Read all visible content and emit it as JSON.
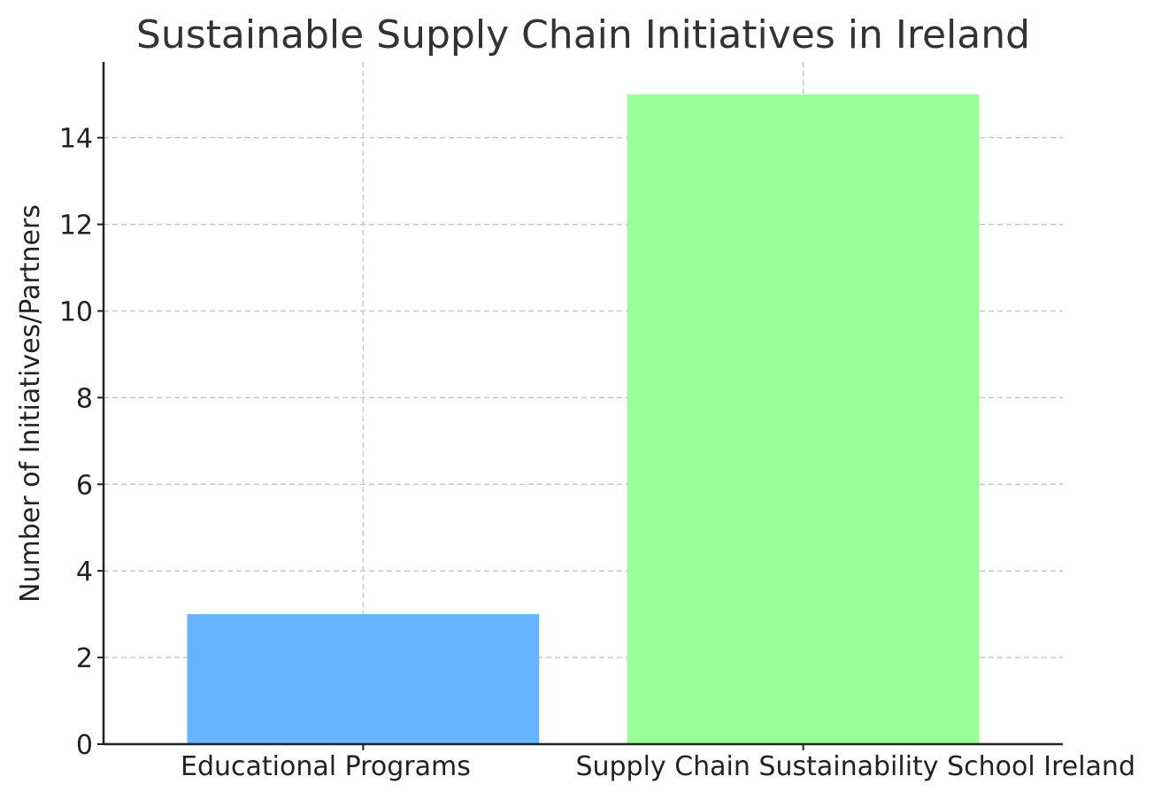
{
  "chart_data": {
    "type": "bar",
    "title": "Sustainable Supply Chain Initiatives in Ireland",
    "xlabel": "",
    "ylabel": "Number of Initiatives/Partners",
    "categories": [
      "Educational Programs",
      "Supply Chain Sustainability School Ireland"
    ],
    "values": [
      3,
      15
    ],
    "colors": [
      "#66b3ff",
      "#99ff99"
    ],
    "ylim": [
      0,
      15.75
    ],
    "yticks": [
      0,
      2,
      4,
      6,
      8,
      10,
      12,
      14
    ],
    "grid": true
  }
}
